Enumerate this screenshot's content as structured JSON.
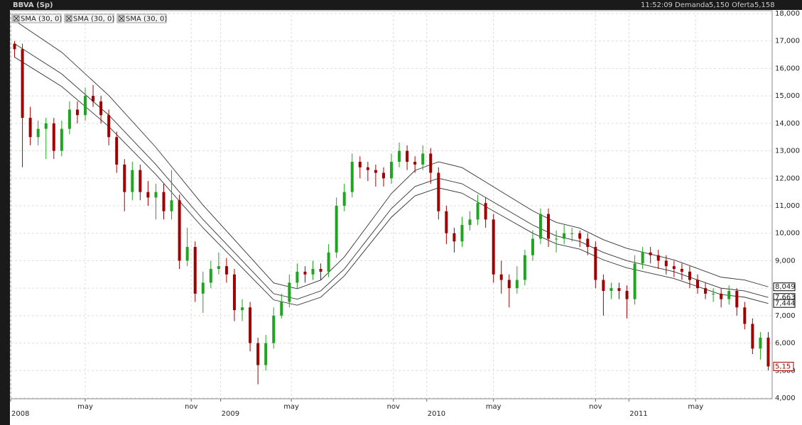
{
  "header": {
    "time": "11:52:09",
    "bid_label": "Demanda",
    "bid": "5,150",
    "ask_label": "Oferta",
    "ask": "5,158"
  },
  "chart_data": {
    "type": "candlestick",
    "title": "BBVA (Sp)",
    "up_color": "#1fa51f",
    "down_color": "#a00000",
    "grid": true,
    "x": [
      1,
      3,
      5,
      7,
      9,
      11,
      13,
      15,
      17,
      19,
      21,
      23,
      25,
      27,
      29,
      31,
      33,
      35,
      37,
      39,
      41,
      43,
      45,
      47,
      49,
      51,
      53,
      55,
      57,
      59,
      61,
      63,
      65,
      67,
      69,
      71,
      73,
      75,
      77,
      79,
      81,
      83,
      85,
      87,
      89,
      91,
      93,
      95,
      97,
      99,
      101,
      103,
      105,
      107,
      109,
      111,
      113,
      115,
      117,
      119,
      121,
      123,
      125,
      127,
      129,
      131,
      133,
      135,
      137,
      139,
      141,
      143,
      145,
      147,
      149,
      151,
      153,
      155,
      157,
      159,
      161,
      163,
      165,
      167,
      169,
      171,
      173,
      175,
      177,
      179,
      181,
      183,
      185,
      187,
      189,
      191,
      193
    ],
    "ohlc": [
      [
        16900,
        17000,
        16400,
        16700
      ],
      [
        16700,
        16900,
        12400,
        14200
      ],
      [
        14200,
        14600,
        13200,
        13500
      ],
      [
        13500,
        14100,
        13200,
        13800
      ],
      [
        13800,
        14200,
        12700,
        14000
      ],
      [
        14000,
        14200,
        12700,
        13000
      ],
      [
        13000,
        14100,
        12800,
        13800
      ],
      [
        13800,
        14800,
        13600,
        14500
      ],
      [
        14500,
        14800,
        14000,
        14300
      ],
      [
        14300,
        15300,
        14100,
        15000
      ],
      [
        15000,
        15400,
        14600,
        14800
      ],
      [
        14800,
        15000,
        14000,
        14300
      ],
      [
        14300,
        14500,
        13200,
        13500
      ],
      [
        13500,
        13700,
        12200,
        12500
      ],
      [
        12500,
        12700,
        10800,
        11500
      ],
      [
        11500,
        12600,
        11200,
        12300
      ],
      [
        12300,
        12500,
        11200,
        11500
      ],
      [
        11500,
        11900,
        11000,
        11300
      ],
      [
        11300,
        11800,
        10500,
        11500
      ],
      [
        11500,
        11800,
        10500,
        10800
      ],
      [
        10800,
        12300,
        10500,
        11200
      ],
      [
        11200,
        11400,
        8700,
        9000
      ],
      [
        9000,
        10200,
        8800,
        9500
      ],
      [
        9500,
        9700,
        7500,
        7800
      ],
      [
        7800,
        8600,
        7100,
        8200
      ],
      [
        8200,
        9000,
        8000,
        8700
      ],
      [
        8700,
        9300,
        8500,
        8800
      ],
      [
        8800,
        9100,
        8200,
        8500
      ],
      [
        8500,
        8700,
        6800,
        7200
      ],
      [
        7200,
        7600,
        6800,
        7300
      ],
      [
        7300,
        7500,
        5700,
        6000
      ],
      [
        6000,
        6200,
        4500,
        5200
      ],
      [
        5200,
        6300,
        5000,
        6000
      ],
      [
        6000,
        7300,
        5800,
        7000
      ],
      [
        7000,
        7800,
        6900,
        7500
      ],
      [
        7500,
        8500,
        7300,
        8200
      ],
      [
        8200,
        8900,
        8000,
        8600
      ],
      [
        8600,
        8800,
        8200,
        8500
      ],
      [
        8500,
        9000,
        8300,
        8700
      ],
      [
        8700,
        8900,
        8300,
        8600
      ],
      [
        8600,
        9600,
        8400,
        9300
      ],
      [
        9300,
        11300,
        9100,
        11000
      ],
      [
        11000,
        11800,
        10800,
        11500
      ],
      [
        11500,
        12900,
        11300,
        12600
      ],
      [
        12600,
        12800,
        12000,
        12400
      ],
      [
        12400,
        12600,
        11900,
        12300
      ],
      [
        12300,
        12500,
        11700,
        12200
      ],
      [
        12200,
        12400,
        11700,
        12000
      ],
      [
        12000,
        12900,
        11800,
        12600
      ],
      [
        12600,
        13300,
        12400,
        13000
      ],
      [
        13000,
        13200,
        12300,
        12600
      ],
      [
        12600,
        12800,
        12200,
        12500
      ],
      [
        12500,
        13200,
        12300,
        12900
      ],
      [
        12900,
        13100,
        11800,
        12200
      ],
      [
        12200,
        12400,
        10500,
        10800
      ],
      [
        10800,
        11000,
        9600,
        10000
      ],
      [
        10000,
        10200,
        9300,
        9700
      ],
      [
        9700,
        10600,
        9500,
        10300
      ],
      [
        10300,
        10800,
        10100,
        10500
      ],
      [
        10500,
        11400,
        10300,
        11100
      ],
      [
        11100,
        11300,
        10200,
        10500
      ],
      [
        10500,
        10700,
        8200,
        8500
      ],
      [
        8500,
        9000,
        7800,
        8300
      ],
      [
        8300,
        8500,
        7300,
        8000
      ],
      [
        8000,
        8800,
        7800,
        8300
      ],
      [
        8300,
        9400,
        8100,
        9200
      ],
      [
        9200,
        10100,
        9000,
        9800
      ],
      [
        9800,
        10900,
        9600,
        10700
      ],
      [
        10700,
        10900,
        9500,
        9800
      ],
      [
        9800,
        10100,
        9300,
        9800
      ],
      [
        9800,
        10300,
        9600,
        10000
      ],
      [
        10000,
        10200,
        9700,
        10000
      ],
      [
        10000,
        10100,
        9500,
        9800
      ],
      [
        9800,
        10000,
        9200,
        9500
      ],
      [
        9500,
        9700,
        8000,
        8300
      ],
      [
        8300,
        8500,
        7000,
        7900
      ],
      [
        7900,
        8200,
        7600,
        8000
      ],
      [
        8000,
        8200,
        7600,
        7900
      ],
      [
        7900,
        8100,
        6900,
        7600
      ],
      [
        7600,
        9200,
        7400,
        8900
      ],
      [
        8900,
        9500,
        8700,
        9300
      ],
      [
        9300,
        9500,
        8900,
        9200
      ],
      [
        9200,
        9400,
        8700,
        9000
      ],
      [
        9000,
        9200,
        8500,
        8800
      ],
      [
        8800,
        9000,
        8400,
        8700
      ],
      [
        8700,
        8900,
        8300,
        8600
      ],
      [
        8600,
        8800,
        8000,
        8300
      ],
      [
        8300,
        8500,
        7800,
        8000
      ],
      [
        8000,
        8200,
        7600,
        7800
      ],
      [
        7800,
        8000,
        7500,
        7800
      ],
      [
        7800,
        8000,
        7300,
        7600
      ],
      [
        7600,
        8100,
        7400,
        7900
      ],
      [
        7900,
        8000,
        7000,
        7300
      ],
      [
        7300,
        7500,
        6500,
        6700
      ],
      [
        6700,
        6900,
        5600,
        5800
      ],
      [
        5800,
        6400,
        5400,
        6200
      ],
      [
        6200,
        6400,
        5000,
        5150
      ]
    ],
    "last_label": "5,15",
    "series": [
      {
        "name": "SMA (30, 0)",
        "color": "#333333",
        "end_label": "8,049",
        "x": [
          1,
          13,
          25,
          37,
          49,
          61,
          67,
          73,
          79,
          85,
          91,
          97,
          103,
          109,
          115,
          121,
          127,
          133,
          139,
          145,
          151,
          157,
          163,
          169,
          175,
          181,
          187,
          193
        ],
        "values": [
          17745,
          16590,
          15015,
          13125,
          11025,
          9135,
          8190,
          7980,
          8295,
          9135,
          10290,
          11445,
          12285,
          12600,
          12390,
          11865,
          11340,
          10815,
          10395,
          10185,
          9765,
          9450,
          9240,
          9030,
          8715,
          8400,
          8295,
          8049
        ]
      },
      {
        "name": "SMA (30, 0)",
        "color": "#333333",
        "end_label": "7,663",
        "x": [
          1,
          13,
          25,
          37,
          49,
          61,
          67,
          73,
          79,
          85,
          91,
          97,
          103,
          109,
          115,
          121,
          127,
          133,
          139,
          145,
          151,
          157,
          163,
          169,
          175,
          181,
          187,
          193
        ],
        "values": [
          16900,
          15800,
          14300,
          12500,
          10500,
          8700,
          7800,
          7600,
          7900,
          8700,
          9800,
          10900,
          11700,
          12000,
          11800,
          11300,
          10800,
          10300,
          9900,
          9700,
          9300,
          9000,
          8800,
          8600,
          8300,
          8000,
          7900,
          7663
        ]
      },
      {
        "name": "SMA (30, 0)",
        "color": "#333333",
        "end_label": "7,444",
        "x": [
          1,
          13,
          25,
          37,
          49,
          61,
          67,
          73,
          79,
          85,
          91,
          97,
          103,
          109,
          115,
          121,
          127,
          133,
          139,
          145,
          151,
          157,
          163,
          169,
          175,
          181,
          187,
          193
        ],
        "values": [
          16410,
          15342,
          13885,
          12138,
          10196,
          8448,
          7574,
          7380,
          7671,
          8448,
          9516,
          10584,
          11361,
          11652,
          11458,
          10972,
          10487,
          10001,
          9613,
          9419,
          9030,
          8739,
          8545,
          8351,
          8059,
          7768,
          7671,
          7444
        ]
      }
    ],
    "xlim": [
      0,
      194
    ],
    "xticks": [
      {
        "value": 0,
        "label": "2008"
      },
      {
        "value": 19,
        "label": "may"
      },
      {
        "value": 46,
        "label": "nov"
      },
      {
        "value": 53.5,
        "label": "2009"
      },
      {
        "value": 71.5,
        "label": "may"
      },
      {
        "value": 97.5,
        "label": "nov"
      },
      {
        "value": 106,
        "label": "2010"
      },
      {
        "value": 123,
        "label": "may"
      },
      {
        "value": 149,
        "label": "nov"
      },
      {
        "value": 157.5,
        "label": "2011"
      },
      {
        "value": 174.5,
        "label": "may"
      }
    ],
    "ylim": [
      4000,
      18000
    ],
    "yticks": [
      {
        "value": 4000,
        "label": "4,000"
      },
      {
        "value": 5000,
        "label": "5,000"
      },
      {
        "value": 6000,
        "label": "6,000"
      },
      {
        "value": 7000,
        "label": "7,000"
      },
      {
        "value": 8000,
        "label": "8,000"
      },
      {
        "value": 9000,
        "label": "9,000"
      },
      {
        "value": 10000,
        "label": "10,000"
      },
      {
        "value": 11000,
        "label": "11,000"
      },
      {
        "value": 12000,
        "label": "12,000"
      },
      {
        "value": 13000,
        "label": "13,000"
      },
      {
        "value": 14000,
        "label": "14,000"
      },
      {
        "value": 15000,
        "label": "15,000"
      },
      {
        "value": 16000,
        "label": "16,000"
      },
      {
        "value": 17000,
        "label": "17,000"
      },
      {
        "value": 18000,
        "label": "18,000"
      }
    ]
  }
}
